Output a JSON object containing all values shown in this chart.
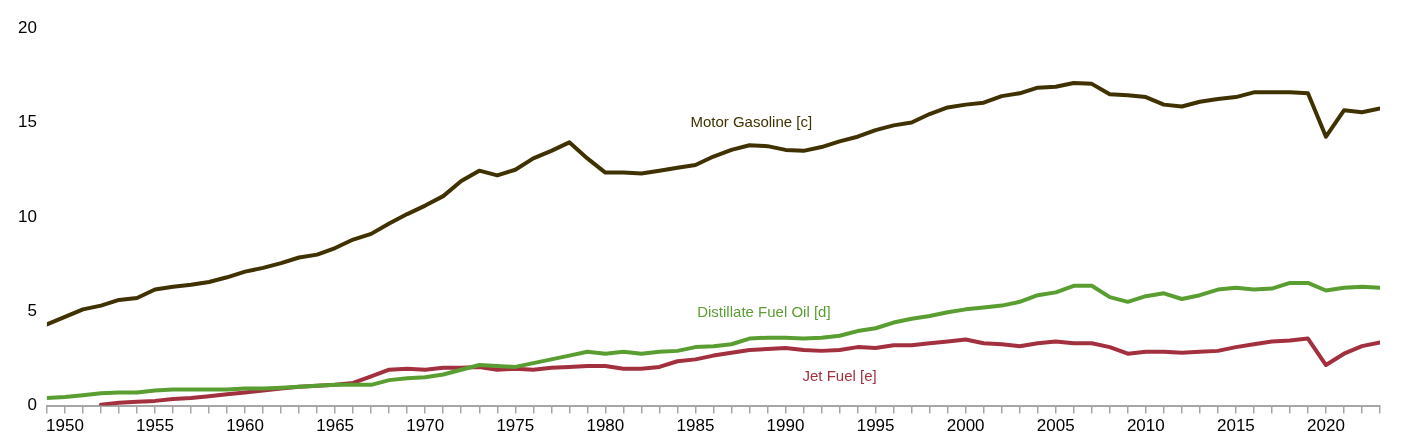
{
  "chart_data": {
    "type": "line",
    "x": [
      1949,
      1950,
      1951,
      1952,
      1953,
      1954,
      1955,
      1956,
      1957,
      1958,
      1959,
      1960,
      1961,
      1962,
      1963,
      1964,
      1965,
      1966,
      1967,
      1968,
      1969,
      1970,
      1971,
      1972,
      1973,
      1974,
      1975,
      1976,
      1977,
      1978,
      1979,
      1980,
      1981,
      1982,
      1983,
      1984,
      1985,
      1986,
      1987,
      1988,
      1989,
      1990,
      1991,
      1992,
      1993,
      1994,
      1995,
      1996,
      1997,
      1998,
      1999,
      2000,
      2001,
      2002,
      2003,
      2004,
      2005,
      2006,
      2007,
      2008,
      2009,
      2010,
      2011,
      2012,
      2013,
      2014,
      2015,
      2016,
      2017,
      2018,
      2019,
      2020,
      2021,
      2022,
      2023
    ],
    "series": [
      {
        "name": "Motor Gasoline [c]",
        "color": "#3f3200",
        "values": [
          4.3,
          4.7,
          5.1,
          5.3,
          5.6,
          5.7,
          6.15,
          6.3,
          6.4,
          6.55,
          6.8,
          7.1,
          7.3,
          7.55,
          7.85,
          8.0,
          8.35,
          8.8,
          9.1,
          9.65,
          10.15,
          10.6,
          11.1,
          11.9,
          12.45,
          12.2,
          12.5,
          13.1,
          13.5,
          13.95,
          13.1,
          12.35,
          12.35,
          12.3,
          12.45,
          12.6,
          12.75,
          13.2,
          13.55,
          13.8,
          13.75,
          13.55,
          13.5,
          13.7,
          14.0,
          14.25,
          14.6,
          14.85,
          15.0,
          15.45,
          15.8,
          15.95,
          16.05,
          16.4,
          16.55,
          16.85,
          16.9,
          17.1,
          17.05,
          16.5,
          16.45,
          16.35,
          15.95,
          15.85,
          16.1,
          16.25,
          16.35,
          16.6,
          16.6,
          16.6,
          16.55,
          14.25,
          15.65,
          15.55,
          15.75
        ]
      },
      {
        "name": "Distillate Fuel Oil [d]",
        "color": "#5a9e32",
        "values": [
          0.4,
          0.45,
          0.55,
          0.65,
          0.7,
          0.7,
          0.8,
          0.85,
          0.85,
          0.85,
          0.85,
          0.9,
          0.9,
          0.95,
          1.0,
          1.05,
          1.1,
          1.1,
          1.1,
          1.35,
          1.45,
          1.5,
          1.65,
          1.9,
          2.15,
          2.1,
          2.05,
          2.25,
          2.45,
          2.65,
          2.85,
          2.75,
          2.85,
          2.75,
          2.85,
          2.9,
          3.1,
          3.15,
          3.25,
          3.55,
          3.6,
          3.6,
          3.55,
          3.6,
          3.7,
          3.95,
          4.1,
          4.4,
          4.6,
          4.75,
          4.95,
          5.1,
          5.2,
          5.3,
          5.5,
          5.85,
          6.0,
          6.35,
          6.35,
          5.75,
          5.5,
          5.8,
          5.95,
          5.65,
          5.85,
          6.15,
          6.25,
          6.15,
          6.2,
          6.5,
          6.5,
          6.1,
          6.25,
          6.3,
          6.25
        ]
      },
      {
        "name": "Jet Fuel [e]",
        "color": "#a3303f",
        "values": [
          null,
          null,
          null,
          0.05,
          0.15,
          0.2,
          0.25,
          0.35,
          0.4,
          0.5,
          0.6,
          0.7,
          0.8,
          0.9,
          1.0,
          1.05,
          1.1,
          1.2,
          1.55,
          1.9,
          1.95,
          1.9,
          2.0,
          2.0,
          2.05,
          1.9,
          1.95,
          1.9,
          2.0,
          2.05,
          2.1,
          2.1,
          1.95,
          1.95,
          2.05,
          2.35,
          2.45,
          2.65,
          2.8,
          2.95,
          3.0,
          3.05,
          2.95,
          2.9,
          2.95,
          3.1,
          3.05,
          3.2,
          3.2,
          3.3,
          3.4,
          3.5,
          3.3,
          3.25,
          3.15,
          3.3,
          3.4,
          3.3,
          3.3,
          3.1,
          2.75,
          2.85,
          2.85,
          2.8,
          2.85,
          2.9,
          3.1,
          3.25,
          3.4,
          3.45,
          3.55,
          2.15,
          2.75,
          3.15,
          3.35
        ]
      }
    ],
    "xlim": [
      1949,
      2023
    ],
    "xticks": [
      {
        "value": 1949,
        "label": null
      },
      1950,
      {
        "value": 1951,
        "label": null
      },
      {
        "value": 1952,
        "label": null
      },
      {
        "value": 1953,
        "label": null
      },
      {
        "value": 1954,
        "label": null
      },
      1955,
      {
        "value": 1956,
        "label": null
      },
      {
        "value": 1957,
        "label": null
      },
      {
        "value": 1958,
        "label": null
      },
      {
        "value": 1959,
        "label": null
      },
      1960,
      {
        "value": 1961,
        "label": null
      },
      {
        "value": 1962,
        "label": null
      },
      {
        "value": 1963,
        "label": null
      },
      {
        "value": 1964,
        "label": null
      },
      1965,
      {
        "value": 1966,
        "label": null
      },
      {
        "value": 1967,
        "label": null
      },
      {
        "value": 1968,
        "label": null
      },
      {
        "value": 1969,
        "label": null
      },
      1970,
      {
        "value": 1971,
        "label": null
      },
      {
        "value": 1972,
        "label": null
      },
      {
        "value": 1973,
        "label": null
      },
      {
        "value": 1974,
        "label": null
      },
      1975,
      {
        "value": 1976,
        "label": null
      },
      {
        "value": 1977,
        "label": null
      },
      {
        "value": 1978,
        "label": null
      },
      {
        "value": 1979,
        "label": null
      },
      1980,
      {
        "value": 1981,
        "label": null
      },
      {
        "value": 1982,
        "label": null
      },
      {
        "value": 1983,
        "label": null
      },
      {
        "value": 1984,
        "label": null
      },
      1985,
      {
        "value": 1986,
        "label": null
      },
      {
        "value": 1987,
        "label": null
      },
      {
        "value": 1988,
        "label": null
      },
      {
        "value": 1989,
        "label": null
      },
      1990,
      {
        "value": 1991,
        "label": null
      },
      {
        "value": 1992,
        "label": null
      },
      {
        "value": 1993,
        "label": null
      },
      {
        "value": 1994,
        "label": null
      },
      1995,
      {
        "value": 1996,
        "label": null
      },
      {
        "value": 1997,
        "label": null
      },
      {
        "value": 1998,
        "label": null
      },
      {
        "value": 1999,
        "label": null
      },
      2000,
      {
        "value": 2001,
        "label": null
      },
      {
        "value": 2002,
        "label": null
      },
      {
        "value": 2003,
        "label": null
      },
      {
        "value": 2004,
        "label": null
      },
      2005,
      {
        "value": 2006,
        "label": null
      },
      {
        "value": 2007,
        "label": null
      },
      {
        "value": 2008,
        "label": null
      },
      {
        "value": 2009,
        "label": null
      },
      2010,
      {
        "value": 2011,
        "label": null
      },
      {
        "value": 2012,
        "label": null
      },
      {
        "value": 2013,
        "label": null
      },
      {
        "value": 2014,
        "label": null
      },
      2015,
      {
        "value": 2016,
        "label": null
      },
      {
        "value": 2017,
        "label": null
      },
      {
        "value": 2018,
        "label": null
      },
      {
        "value": 2019,
        "label": null
      },
      2020,
      {
        "value": 2021,
        "label": null
      },
      {
        "value": 2022,
        "label": null
      },
      {
        "value": 2023,
        "label": null
      }
    ],
    "ylim": [
      0,
      20
    ],
    "yticks": [
      0,
      5,
      10,
      15,
      20
    ],
    "grid": false,
    "legend": false,
    "marker": "none",
    "line_style": "solid"
  }
}
